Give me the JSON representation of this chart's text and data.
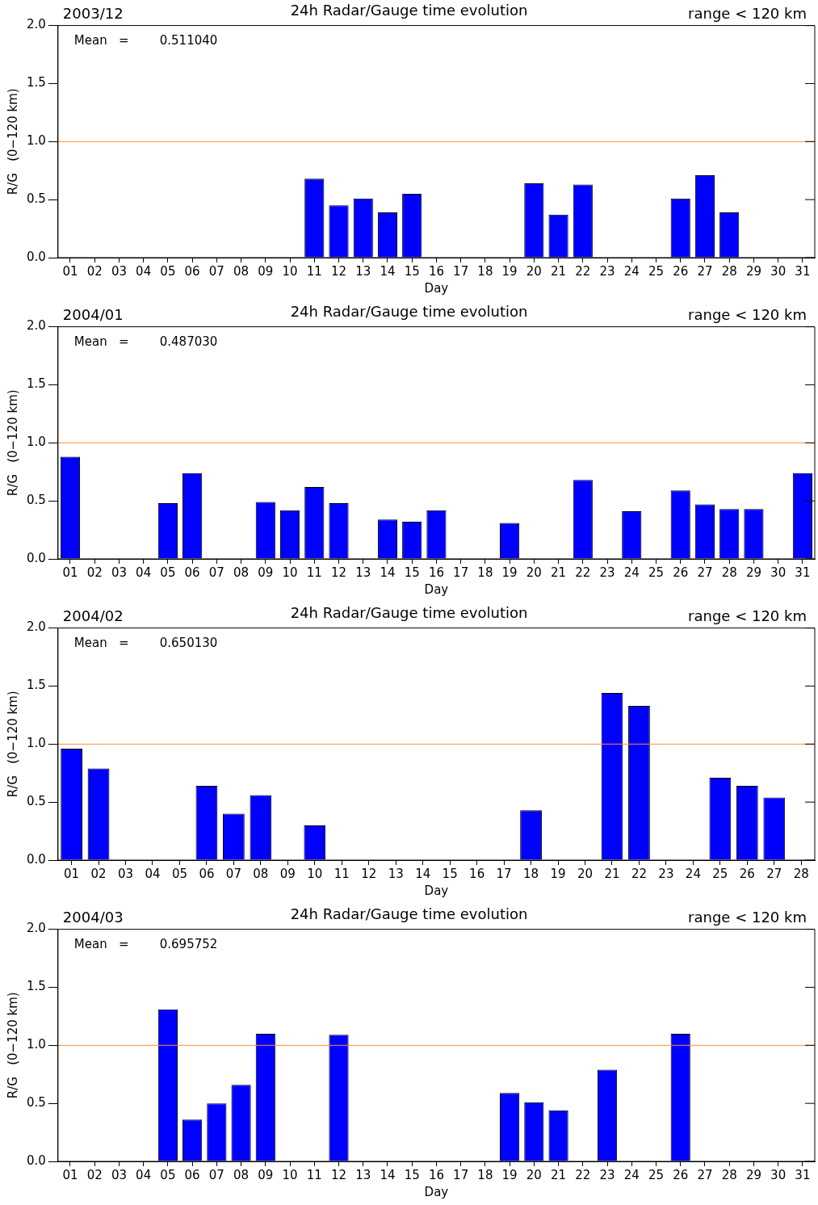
{
  "chart_data": [
    {
      "type": "bar",
      "title": "24h Radar/Gauge time evolution",
      "xlabel": "Day",
      "ylabel": "R/G   (0−120 km)",
      "annotations": [
        "2003/12",
        "range < 120 km",
        "Mean   =        0.511040"
      ],
      "categories": [
        "01",
        "02",
        "03",
        "04",
        "05",
        "06",
        "07",
        "08",
        "09",
        "10",
        "11",
        "12",
        "13",
        "14",
        "15",
        "16",
        "17",
        "18",
        "19",
        "20",
        "21",
        "22",
        "23",
        "24",
        "25",
        "26",
        "27",
        "28",
        "29",
        "30",
        "31"
      ],
      "values": [
        null,
        null,
        null,
        null,
        null,
        null,
        null,
        null,
        null,
        null,
        0.68,
        0.45,
        0.51,
        0.39,
        0.55,
        null,
        null,
        null,
        null,
        0.64,
        0.37,
        0.63,
        null,
        null,
        null,
        0.51,
        0.71,
        0.39,
        null,
        null,
        null
      ],
      "color": "#0000ff",
      "ylim": [
        0,
        2
      ],
      "yticks": [
        {
          "value": 0,
          "label": "0.0"
        },
        {
          "value": 0.5,
          "label": "0.5"
        },
        {
          "value": 1,
          "label": "1.0"
        },
        {
          "value": 1.5,
          "label": "1.5"
        },
        {
          "value": 2,
          "label": "2.0"
        }
      ],
      "ref_lines": [
        {
          "axis": "y",
          "value": 1,
          "color": "#ff8c3c"
        }
      ],
      "grid": false,
      "legend": false
    },
    {
      "type": "bar",
      "title": "24h Radar/Gauge time evolution",
      "xlabel": "Day",
      "ylabel": "R/G   (0−120 km)",
      "annotations": [
        "2004/01",
        "range < 120 km",
        "Mean   =        0.487030"
      ],
      "categories": [
        "01",
        "02",
        "03",
        "04",
        "05",
        "06",
        "07",
        "08",
        "09",
        "10",
        "11",
        "12",
        "13",
        "14",
        "15",
        "16",
        "17",
        "18",
        "19",
        "20",
        "21",
        "22",
        "23",
        "24",
        "25",
        "26",
        "27",
        "28",
        "29",
        "30",
        "31"
      ],
      "values": [
        0.88,
        null,
        null,
        null,
        0.48,
        0.74,
        null,
        null,
        0.49,
        0.42,
        0.62,
        0.48,
        null,
        0.34,
        0.32,
        0.42,
        null,
        null,
        0.31,
        null,
        null,
        0.68,
        null,
        0.41,
        null,
        0.59,
        0.47,
        0.43,
        0.43,
        null,
        0.74
      ],
      "color": "#0000ff",
      "ylim": [
        0,
        2
      ],
      "yticks": [
        {
          "value": 0,
          "label": "0.0"
        },
        {
          "value": 0.5,
          "label": "0.5"
        },
        {
          "value": 1,
          "label": "1.0"
        },
        {
          "value": 1.5,
          "label": "1.5"
        },
        {
          "value": 2,
          "label": "2.0"
        }
      ],
      "ref_lines": [
        {
          "axis": "y",
          "value": 1,
          "color": "#ff8c3c"
        }
      ],
      "grid": false,
      "legend": false
    },
    {
      "type": "bar",
      "title": "24h Radar/Gauge time evolution",
      "xlabel": "Day",
      "ylabel": "R/G   (0−120 km)",
      "annotations": [
        "2004/02",
        "range < 120 km",
        "Mean   =        0.650130"
      ],
      "categories": [
        "01",
        "02",
        "03",
        "04",
        "05",
        "06",
        "07",
        "08",
        "09",
        "10",
        "11",
        "12",
        "13",
        "14",
        "15",
        "16",
        "17",
        "18",
        "19",
        "20",
        "21",
        "22",
        "23",
        "24",
        "25",
        "26",
        "27",
        "28"
      ],
      "values": [
        0.96,
        0.79,
        null,
        null,
        null,
        0.64,
        0.4,
        0.56,
        null,
        0.3,
        null,
        null,
        null,
        null,
        null,
        null,
        null,
        0.43,
        null,
        null,
        1.44,
        1.33,
        null,
        null,
        0.71,
        0.64,
        0.54,
        null
      ],
      "color": "#0000ff",
      "ylim": [
        0,
        2
      ],
      "yticks": [
        {
          "value": 0,
          "label": "0.0"
        },
        {
          "value": 0.5,
          "label": "0.5"
        },
        {
          "value": 1,
          "label": "1.0"
        },
        {
          "value": 1.5,
          "label": "1.5"
        },
        {
          "value": 2,
          "label": "2.0"
        }
      ],
      "ref_lines": [
        {
          "axis": "y",
          "value": 1,
          "color": "#ff8c3c"
        }
      ],
      "grid": false,
      "legend": false
    },
    {
      "type": "bar",
      "title": "24h Radar/Gauge time evolution",
      "xlabel": "Day",
      "ylabel": "R/G   (0−120 km)",
      "annotations": [
        "2004/03",
        "range < 120 km",
        "Mean   =        0.695752"
      ],
      "categories": [
        "01",
        "02",
        "03",
        "04",
        "05",
        "06",
        "07",
        "08",
        "09",
        "10",
        "11",
        "12",
        "13",
        "14",
        "15",
        "16",
        "17",
        "18",
        "19",
        "20",
        "21",
        "22",
        "23",
        "24",
        "25",
        "26",
        "27",
        "28",
        "29",
        "30",
        "31"
      ],
      "values": [
        null,
        null,
        null,
        null,
        1.31,
        0.36,
        0.5,
        0.66,
        1.1,
        null,
        null,
        1.09,
        null,
        null,
        null,
        null,
        null,
        null,
        0.59,
        0.51,
        0.44,
        null,
        0.79,
        null,
        null,
        1.1,
        null,
        null,
        null,
        null,
        null
      ],
      "color": "#0000ff",
      "ylim": [
        0,
        2
      ],
      "yticks": [
        {
          "value": 0,
          "label": "0.0"
        },
        {
          "value": 0.5,
          "label": "0.5"
        },
        {
          "value": 1,
          "label": "1.0"
        },
        {
          "value": 1.5,
          "label": "1.5"
        },
        {
          "value": 2,
          "label": "2.0"
        }
      ],
      "ref_lines": [
        {
          "axis": "y",
          "value": 1,
          "color": "#ff8c3c"
        }
      ],
      "grid": false,
      "legend": false
    }
  ]
}
